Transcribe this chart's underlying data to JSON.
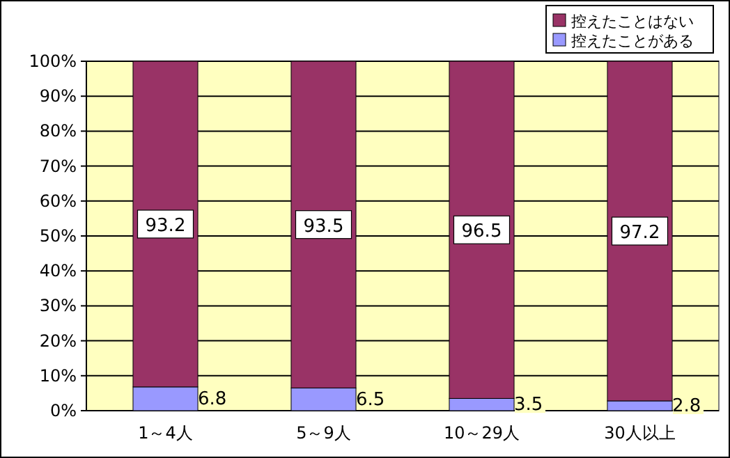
{
  "chart_data": {
    "type": "bar",
    "stacked": true,
    "categories": [
      "1～4人",
      "5～9人",
      "10～29人",
      "30人以上"
    ],
    "series": [
      {
        "name": "控えたことがある",
        "color": "#9999ff",
        "values": [
          6.8,
          6.5,
          3.5,
          2.8
        ]
      },
      {
        "name": "控えたことはない",
        "color": "#993366",
        "values": [
          93.2,
          93.5,
          96.5,
          97.2
        ]
      }
    ],
    "ylim": [
      0,
      100
    ],
    "yticks": [
      {
        "value": 0,
        "label": "0%"
      },
      {
        "value": 10,
        "label": "10%"
      },
      {
        "value": 20,
        "label": "20%"
      },
      {
        "value": 30,
        "label": "30%"
      },
      {
        "value": 40,
        "label": "40%"
      },
      {
        "value": 50,
        "label": "50%"
      },
      {
        "value": 60,
        "label": "60%"
      },
      {
        "value": 70,
        "label": "70%"
      },
      {
        "value": 80,
        "label": "80%"
      },
      {
        "value": 90,
        "label": "90%"
      },
      {
        "value": 100,
        "label": "100%"
      }
    ],
    "grid": "y",
    "legend": "top right",
    "data_labels": true
  }
}
